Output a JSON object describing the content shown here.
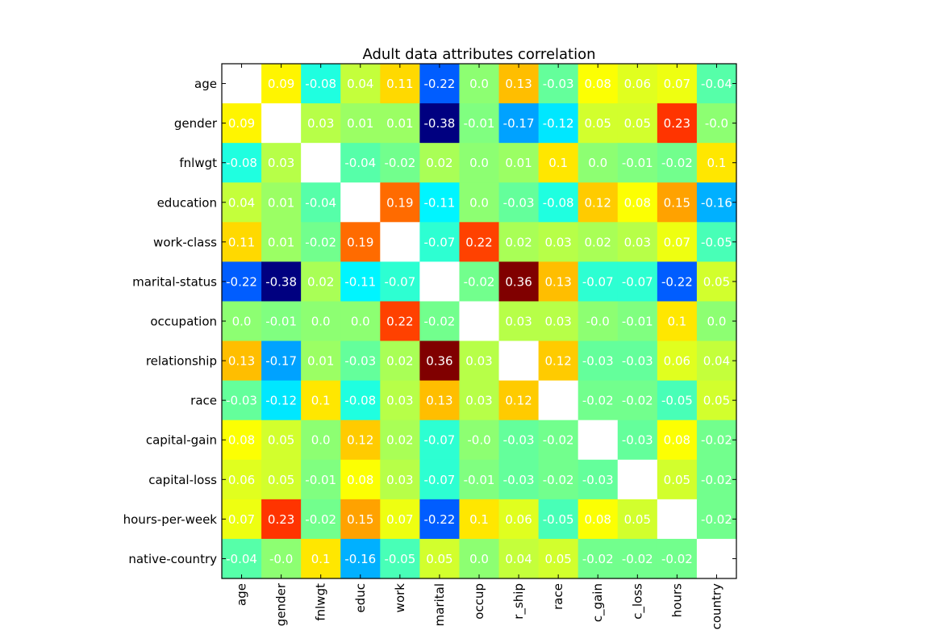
{
  "chart_data": {
    "type": "heatmap",
    "title": "Adult data attributes correlation",
    "rows": [
      "age",
      "gender",
      "fnlwgt",
      "education",
      "work-class",
      "marital-status",
      "occupation",
      "relationship",
      "race",
      "capital-gain",
      "capital-loss",
      "hours-per-week",
      "native-country"
    ],
    "columns": [
      "age",
      "gender",
      "fnlwgt",
      "educ",
      "work",
      "marital",
      "occup",
      "r_ship",
      "race",
      "c_gain",
      "c_loss",
      "hours",
      "country"
    ],
    "values": [
      [
        null,
        0.09,
        -0.08,
        0.04,
        0.11,
        -0.22,
        0.0,
        0.13,
        -0.03,
        0.08,
        0.06,
        0.07,
        -0.04
      ],
      [
        0.09,
        null,
        0.03,
        0.01,
        0.01,
        -0.38,
        -0.01,
        -0.17,
        -0.12,
        0.05,
        0.05,
        0.23,
        -0.0
      ],
      [
        -0.08,
        0.03,
        null,
        -0.04,
        -0.02,
        0.02,
        0.0,
        0.01,
        0.1,
        0.0,
        -0.01,
        -0.02,
        0.1
      ],
      [
        0.04,
        0.01,
        -0.04,
        null,
        0.19,
        -0.11,
        0.0,
        -0.03,
        -0.08,
        0.12,
        0.08,
        0.15,
        -0.16
      ],
      [
        0.11,
        0.01,
        -0.02,
        0.19,
        null,
        -0.07,
        0.22,
        0.02,
        0.03,
        0.02,
        0.03,
        0.07,
        -0.05
      ],
      [
        -0.22,
        -0.38,
        0.02,
        -0.11,
        -0.07,
        null,
        -0.02,
        0.36,
        0.13,
        -0.07,
        -0.07,
        -0.22,
        0.05
      ],
      [
        0.0,
        -0.01,
        0.0,
        0.0,
        0.22,
        -0.02,
        null,
        0.03,
        0.03,
        -0.0,
        -0.01,
        0.1,
        0.0
      ],
      [
        0.13,
        -0.17,
        0.01,
        -0.03,
        0.02,
        0.36,
        0.03,
        null,
        0.12,
        -0.03,
        -0.03,
        0.06,
        0.04
      ],
      [
        -0.03,
        -0.12,
        0.1,
        -0.08,
        0.03,
        0.13,
        0.03,
        0.12,
        null,
        -0.02,
        -0.02,
        -0.05,
        0.05
      ],
      [
        0.08,
        0.05,
        0.0,
        0.12,
        0.02,
        -0.07,
        -0.0,
        -0.03,
        -0.02,
        null,
        -0.03,
        0.08,
        -0.02
      ],
      [
        0.06,
        0.05,
        -0.01,
        0.08,
        0.03,
        -0.07,
        -0.01,
        -0.03,
        -0.02,
        -0.03,
        null,
        0.05,
        -0.02
      ],
      [
        0.07,
        0.23,
        -0.02,
        0.15,
        0.07,
        -0.22,
        0.1,
        0.06,
        -0.05,
        0.08,
        0.05,
        null,
        -0.02
      ],
      [
        -0.04,
        -0.0,
        0.1,
        -0.16,
        -0.05,
        0.05,
        0.0,
        0.04,
        0.05,
        -0.02,
        -0.02,
        -0.02,
        null
      ]
    ],
    "cell_labels": [
      [
        "nan",
        "0.09",
        "-0.08",
        "0.04",
        "0.11",
        "-0.22",
        "0.0",
        "0.13",
        "-0.03",
        "0.08",
        "0.06",
        "0.07",
        "-0.04"
      ],
      [
        "0.09",
        "nan",
        "0.03",
        "0.01",
        "0.01",
        "-0.38",
        "-0.01",
        "-0.17",
        "-0.12",
        "0.05",
        "0.05",
        "0.23",
        "-0.0"
      ],
      [
        "-0.08",
        "0.03",
        "nan",
        "-0.04",
        "-0.02",
        "0.02",
        "0.0",
        "0.01",
        "0.1",
        "0.0",
        "-0.01",
        "-0.02",
        "0.1"
      ],
      [
        "0.04",
        "0.01",
        "-0.04",
        "nan",
        "0.19",
        "-0.11",
        "0.0",
        "-0.03",
        "-0.08",
        "0.12",
        "0.08",
        "0.15",
        "-0.16"
      ],
      [
        "0.11",
        "0.01",
        "-0.02",
        "0.19",
        "nan",
        "-0.07",
        "0.22",
        "0.02",
        "0.03",
        "0.02",
        "0.03",
        "0.07",
        "-0.05"
      ],
      [
        "-0.22",
        "-0.38",
        "0.02",
        "-0.11",
        "-0.07",
        "nan",
        "-0.02",
        "0.36",
        "0.13",
        "-0.07",
        "-0.07",
        "-0.22",
        "0.05"
      ],
      [
        "0.0",
        "-0.01",
        "0.0",
        "0.0",
        "0.22",
        "-0.02",
        "nan",
        "0.03",
        "0.03",
        "-0.0",
        "-0.01",
        "0.1",
        "0.0"
      ],
      [
        "0.13",
        "-0.17",
        "0.01",
        "-0.03",
        "0.02",
        "0.36",
        "0.03",
        "nan",
        "0.12",
        "-0.03",
        "-0.03",
        "0.06",
        "0.04"
      ],
      [
        "-0.03",
        "-0.12",
        "0.1",
        "-0.08",
        "0.03",
        "0.13",
        "0.03",
        "0.12",
        "nan",
        "-0.02",
        "-0.02",
        "-0.05",
        "0.05"
      ],
      [
        "0.08",
        "0.05",
        "0.0",
        "0.12",
        "0.02",
        "-0.07",
        "-0.0",
        "-0.03",
        "-0.02",
        "nan",
        "-0.03",
        "0.08",
        "-0.02"
      ],
      [
        "0.06",
        "0.05",
        "-0.01",
        "0.08",
        "0.03",
        "-0.07",
        "-0.01",
        "-0.03",
        "-0.02",
        "-0.03",
        "nan",
        "0.05",
        "-0.02"
      ],
      [
        "0.07",
        "0.23",
        "-0.02",
        "0.15",
        "0.07",
        "-0.22",
        "0.1",
        "0.06",
        "-0.05",
        "0.08",
        "0.05",
        "nan",
        "-0.02"
      ],
      [
        "-0.04",
        "-0.0",
        "0.1",
        "-0.16",
        "-0.05",
        "0.05",
        "0.0",
        "0.04",
        "0.05",
        "-0.02",
        "-0.02",
        "-0.02",
        "nan"
      ]
    ],
    "value_range": [
      -0.38,
      0.36
    ],
    "colormap": "jet",
    "nan_color": "#ffffff",
    "grid": false,
    "legend": "none"
  }
}
